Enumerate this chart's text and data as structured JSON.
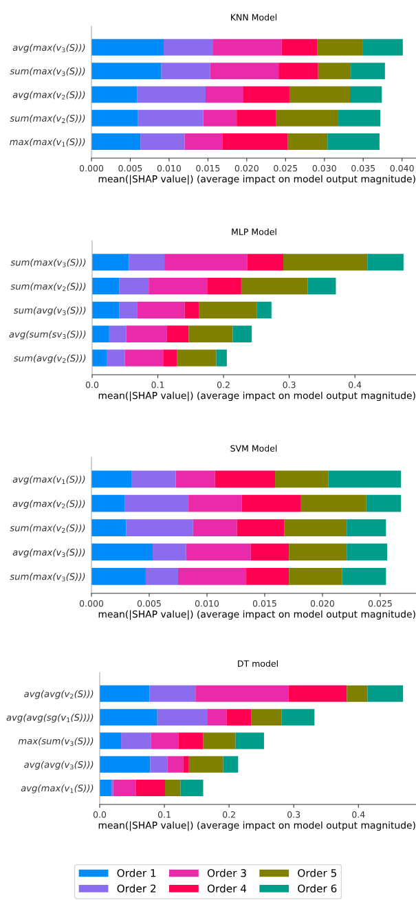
{
  "chart_data": [
    {
      "type": "bar",
      "title": "KNN Model",
      "orientation": "horizontal",
      "stacked": true,
      "legend": "bottom",
      "xlabel": "mean(|SHAP value|) (average impact on model output magnitude)",
      "categories": [
        "avg(max(v$_{3}$(S)))",
        "sum(max(v$_{3}$(S)))",
        "avg(max(v$_{2}$(S)))",
        "sum(max(v$_{2}$(S)))",
        "max(max(v$_{1}$(S)))"
      ],
      "xlim": [
        0,
        0.0418
      ],
      "xticks": [
        {
          "value": 0,
          "label": "0.000"
        },
        {
          "value": 0.005,
          "label": "0.005"
        },
        {
          "value": 0.01,
          "label": "0.010"
        },
        {
          "value": 0.015,
          "label": "0.015"
        },
        {
          "value": 0.02,
          "label": "0.020"
        },
        {
          "value": 0.025,
          "label": "0.025"
        },
        {
          "value": 0.03,
          "label": "0.030"
        },
        {
          "value": 0.035,
          "label": "0.035"
        },
        {
          "value": 0.04,
          "label": "0.040"
        }
      ],
      "series": [
        {
          "name": "Order 1",
          "color": "#008bfb",
          "values": [
            0.0093,
            0.009,
            0.0059,
            0.006,
            0.0063
          ]
        },
        {
          "name": "Order 2",
          "color": "#8b6cef",
          "values": [
            0.0063,
            0.0063,
            0.0088,
            0.0084,
            0.0057
          ]
        },
        {
          "name": "Order 3",
          "color": "#e92aa9",
          "values": [
            0.0089,
            0.0088,
            0.0048,
            0.0043,
            0.0049
          ]
        },
        {
          "name": "Order 4",
          "color": "#ff0052",
          "values": [
            0.0046,
            0.0051,
            0.006,
            0.0051,
            0.0084
          ]
        },
        {
          "name": "Order 5",
          "color": "#808000",
          "values": [
            0.0058,
            0.0042,
            0.0078,
            0.008,
            0.0051
          ]
        },
        {
          "name": "Order 6",
          "color": "#009e8a",
          "values": [
            0.0052,
            0.0044,
            0.0041,
            0.0054,
            0.0067
          ]
        }
      ]
    },
    {
      "type": "bar",
      "title": "MLP Model",
      "orientation": "horizontal",
      "stacked": true,
      "xlabel": "mean(|SHAP value|) (average impact on model output magnitude)",
      "categories": [
        "sum(max(v$_{3}$(S)))",
        "sum(max(v$_{2}$(S)))",
        "sum(avg(v$_{3}$(S)))",
        "avg(sum(sv$_{3}$(S)))",
        "sum(avg(v$_{2}$(S)))"
      ],
      "xlim": [
        0,
        0.493
      ],
      "xticks": [
        {
          "value": 0,
          "label": "0.0"
        },
        0.1,
        0.2,
        0.3,
        0.4
      ],
      "series": [
        {
          "color": "#008bfb",
          "values": [
            0.056,
            0.041,
            0.041,
            0.026,
            0.022
          ]
        },
        {
          "color": "#8b6cef",
          "values": [
            0.054,
            0.045,
            0.028,
            0.026,
            0.028
          ]
        },
        {
          "color": "#e92aa9",
          "values": [
            0.126,
            0.089,
            0.072,
            0.062,
            0.058
          ]
        },
        {
          "color": "#ff0052",
          "values": [
            0.055,
            0.052,
            0.022,
            0.033,
            0.021
          ]
        },
        {
          "color": "#808000",
          "values": [
            0.128,
            0.101,
            0.088,
            0.067,
            0.06
          ]
        },
        {
          "color": "#009e8a",
          "values": [
            0.055,
            0.043,
            0.022,
            0.029,
            0.016
          ]
        }
      ]
    },
    {
      "type": "bar",
      "title": "SVM Model",
      "orientation": "horizontal",
      "stacked": true,
      "xlabel": "mean(|SHAP value|) (average impact on model output magnitude)",
      "categories": [
        "avg(max(v$_{1}$(S)))",
        "avg(max(v$_{2}$(S)))",
        "sum(max(v$_{2}$(S)))",
        "avg(max(v$_{3}$(S)))",
        "sum(max(v$_{3}$(S)))"
      ],
      "xlim": [
        0,
        0.0281
      ],
      "xticks": [
        {
          "value": 0,
          "label": "0.000"
        },
        {
          "value": 0.005,
          "label": "0.005"
        },
        {
          "value": 0.01,
          "label": "0.010"
        },
        {
          "value": 0.015,
          "label": "0.015"
        },
        {
          "value": 0.02,
          "label": "0.020"
        },
        {
          "value": 0.025,
          "label": "0.025"
        }
      ],
      "series": [
        {
          "color": "#008bfb",
          "values": [
            0.0035,
            0.0029,
            0.003,
            0.0053,
            0.0047
          ]
        },
        {
          "color": "#8b6cef",
          "values": [
            0.0038,
            0.0055,
            0.0058,
            0.0029,
            0.0028
          ]
        },
        {
          "color": "#e92aa9",
          "values": [
            0.0034,
            0.0046,
            0.0038,
            0.0056,
            0.0059
          ]
        },
        {
          "color": "#ff0052",
          "values": [
            0.0052,
            0.0051,
            0.0041,
            0.0033,
            0.0037
          ]
        },
        {
          "color": "#808000",
          "values": [
            0.0046,
            0.0057,
            0.0054,
            0.005,
            0.0046
          ]
        },
        {
          "color": "#009e8a",
          "values": [
            0.0063,
            0.003,
            0.0034,
            0.0035,
            0.0038
          ]
        }
      ]
    },
    {
      "type": "bar",
      "title": "DT model",
      "orientation": "horizontal",
      "stacked": true,
      "xlabel": "mean(|SHAP value|) (average impact on model output magnitude)",
      "categories": [
        "avg(avg(v$_{2}$(S)))",
        "avg(avg(sg(v$_{1}$(S))))",
        "max(sum(v$_{3}$(S)))",
        "avg(avg(v$_{3}$(S)))",
        "avg(max(v$_{1}$(S)))"
      ],
      "xlim": [
        0,
        0.489
      ],
      "xticks": [
        {
          "value": 0,
          "label": "0.0"
        },
        0.1,
        0.2,
        0.3,
        0.4
      ],
      "series": [
        {
          "color": "#008bfb",
          "values": [
            0.077,
            0.089,
            0.033,
            0.078,
            0.018
          ]
        },
        {
          "color": "#8b6cef",
          "values": [
            0.071,
            0.077,
            0.046,
            0.027,
            0.003
          ]
        },
        {
          "color": "#e92aa9",
          "values": [
            0.144,
            0.03,
            0.043,
            0.024,
            0.035
          ]
        },
        {
          "color": "#ff0052",
          "values": [
            0.09,
            0.038,
            0.038,
            0.009,
            0.045
          ]
        },
        {
          "color": "#808000",
          "values": [
            0.032,
            0.047,
            0.05,
            0.053,
            0.024
          ]
        },
        {
          "color": "#009e8a",
          "values": [
            0.055,
            0.051,
            0.044,
            0.023,
            0.035
          ]
        }
      ]
    }
  ]
}
